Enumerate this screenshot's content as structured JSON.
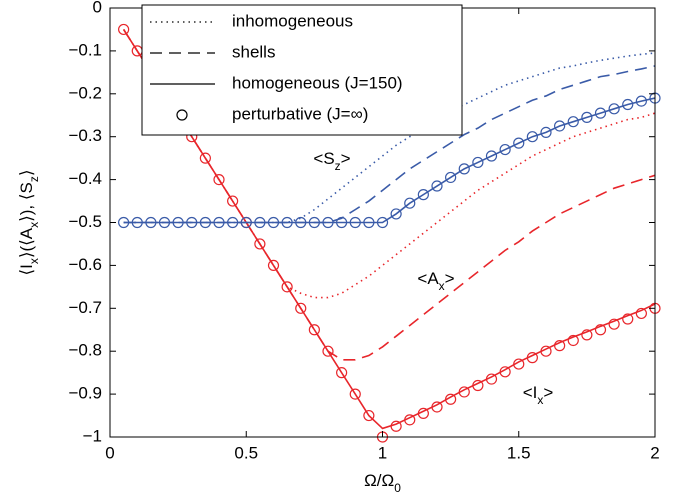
{
  "chart_data": {
    "type": "line",
    "xlabel": [
      "Ω/Ω",
      "0"
    ],
    "ylabel": [
      "⟨I",
      "x",
      "⟩(⟨A",
      "x",
      "⟩), ⟨S",
      "z",
      "⟩"
    ],
    "xlim": [
      0,
      2
    ],
    "ylim": [
      -1,
      0
    ],
    "xticks": [
      0,
      0.5,
      1,
      1.5,
      2
    ],
    "yticks": [
      {
        "value": -1,
        "label": "−1"
      },
      {
        "value": -0.9,
        "label": "−0.9"
      },
      {
        "value": -0.8,
        "label": "−0.8"
      },
      {
        "value": -0.7,
        "label": "−0.7"
      },
      {
        "value": -0.6,
        "label": "−0.6"
      },
      {
        "value": -0.5,
        "label": "−0.5"
      },
      {
        "value": -0.4,
        "label": "−0.4"
      },
      {
        "value": -0.3,
        "label": "−0.3"
      },
      {
        "value": -0.2,
        "label": "−0.2"
      },
      {
        "value": -0.1,
        "label": "−0.1"
      },
      0
    ],
    "x": [
      0.05,
      0.1,
      0.15,
      0.2,
      0.25,
      0.3,
      0.35,
      0.4,
      0.45,
      0.5,
      0.55,
      0.6,
      0.65,
      0.7,
      0.75,
      0.8,
      0.85,
      0.9,
      0.95,
      1.0,
      1.05,
      1.1,
      1.15,
      1.2,
      1.25,
      1.3,
      1.35,
      1.4,
      1.45,
      1.5,
      1.55,
      1.6,
      1.65,
      1.7,
      1.75,
      1.8,
      1.85,
      1.9,
      1.95,
      2.0
    ],
    "series": [
      {
        "style": "dotted",
        "color": "#e8262b",
        "values": [
          -0.05,
          -0.1,
          -0.15,
          -0.2,
          -0.25,
          -0.3,
          -0.35,
          -0.4,
          -0.45,
          -0.5,
          -0.55,
          -0.6,
          -0.65,
          -0.665,
          -0.675,
          -0.675,
          -0.665,
          -0.645,
          -0.625,
          -0.6,
          -0.575,
          -0.55,
          -0.525,
          -0.5,
          -0.475,
          -0.45,
          -0.425,
          -0.405,
          -0.385,
          -0.365,
          -0.345,
          -0.33,
          -0.315,
          -0.3,
          -0.29,
          -0.28,
          -0.27,
          -0.26,
          -0.255,
          -0.245
        ]
      },
      {
        "style": "dashed",
        "color": "#e8262b",
        "values": [
          -0.05,
          -0.1,
          -0.15,
          -0.2,
          -0.25,
          -0.3,
          -0.35,
          -0.4,
          -0.45,
          -0.5,
          -0.55,
          -0.6,
          -0.65,
          -0.7,
          -0.75,
          -0.8,
          -0.82,
          -0.82,
          -0.81,
          -0.79,
          -0.765,
          -0.74,
          -0.715,
          -0.69,
          -0.665,
          -0.64,
          -0.615,
          -0.59,
          -0.565,
          -0.545,
          -0.52,
          -0.5,
          -0.48,
          -0.465,
          -0.45,
          -0.435,
          -0.42,
          -0.41,
          -0.4,
          -0.39
        ]
      },
      {
        "style": "solid",
        "color": "#e8262b",
        "values": [
          -0.05,
          -0.1,
          -0.15,
          -0.2,
          -0.25,
          -0.3,
          -0.35,
          -0.4,
          -0.45,
          -0.5,
          -0.55,
          -0.6,
          -0.65,
          -0.7,
          -0.75,
          -0.8,
          -0.85,
          -0.9,
          -0.95,
          -0.98,
          -0.97,
          -0.955,
          -0.94,
          -0.925,
          -0.907,
          -0.89,
          -0.875,
          -0.86,
          -0.843,
          -0.825,
          -0.81,
          -0.795,
          -0.78,
          -0.767,
          -0.755,
          -0.742,
          -0.73,
          -0.717,
          -0.705,
          -0.69
        ]
      },
      {
        "style": "circles",
        "color": "#e8262b",
        "values": [
          -0.05,
          -0.1,
          -0.15,
          -0.2,
          -0.25,
          -0.3,
          -0.35,
          -0.4,
          -0.45,
          -0.5,
          -0.55,
          -0.6,
          -0.65,
          -0.7,
          -0.75,
          -0.8,
          -0.85,
          -0.9,
          -0.95,
          -1.0,
          -0.975,
          -0.96,
          -0.945,
          -0.93,
          -0.912,
          -0.895,
          -0.88,
          -0.865,
          -0.848,
          -0.83,
          -0.815,
          -0.8,
          -0.787,
          -0.775,
          -0.762,
          -0.75,
          -0.737,
          -0.725,
          -0.712,
          -0.7
        ]
      },
      {
        "style": "dotted",
        "color": "#3a5ba8",
        "values": [
          -0.5,
          -0.5,
          -0.5,
          -0.5,
          -0.5,
          -0.5,
          -0.5,
          -0.5,
          -0.5,
          -0.5,
          -0.5,
          -0.5,
          -0.5,
          -0.49,
          -0.47,
          -0.445,
          -0.42,
          -0.395,
          -0.37,
          -0.345,
          -0.32,
          -0.3,
          -0.28,
          -0.26,
          -0.24,
          -0.225,
          -0.21,
          -0.195,
          -0.18,
          -0.17,
          -0.16,
          -0.15,
          -0.14,
          -0.135,
          -0.128,
          -0.122,
          -0.117,
          -0.112,
          -0.108,
          -0.105
        ]
      },
      {
        "style": "dashed",
        "color": "#3a5ba8",
        "values": [
          -0.5,
          -0.5,
          -0.5,
          -0.5,
          -0.5,
          -0.5,
          -0.5,
          -0.5,
          -0.5,
          -0.5,
          -0.5,
          -0.5,
          -0.5,
          -0.5,
          -0.5,
          -0.5,
          -0.49,
          -0.47,
          -0.45,
          -0.425,
          -0.4,
          -0.375,
          -0.355,
          -0.335,
          -0.315,
          -0.295,
          -0.28,
          -0.26,
          -0.245,
          -0.23,
          -0.215,
          -0.205,
          -0.19,
          -0.18,
          -0.17,
          -0.16,
          -0.155,
          -0.148,
          -0.142,
          -0.135
        ]
      },
      {
        "style": "solid",
        "color": "#3a5ba8",
        "values": [
          -0.5,
          -0.5,
          -0.5,
          -0.5,
          -0.5,
          -0.5,
          -0.5,
          -0.5,
          -0.5,
          -0.5,
          -0.5,
          -0.5,
          -0.5,
          -0.5,
          -0.5,
          -0.5,
          -0.5,
          -0.5,
          -0.5,
          -0.5,
          -0.48,
          -0.455,
          -0.435,
          -0.415,
          -0.395,
          -0.375,
          -0.36,
          -0.345,
          -0.33,
          -0.315,
          -0.3,
          -0.29,
          -0.275,
          -0.265,
          -0.255,
          -0.245,
          -0.235,
          -0.225,
          -0.217,
          -0.21
        ]
      },
      {
        "style": "circles",
        "color": "#3a5ba8",
        "values": [
          -0.5,
          -0.5,
          -0.5,
          -0.5,
          -0.5,
          -0.5,
          -0.5,
          -0.5,
          -0.5,
          -0.5,
          -0.5,
          -0.5,
          -0.5,
          -0.5,
          -0.5,
          -0.5,
          -0.5,
          -0.5,
          -0.5,
          -0.5,
          -0.48,
          -0.455,
          -0.435,
          -0.415,
          -0.395,
          -0.375,
          -0.36,
          -0.345,
          -0.33,
          -0.315,
          -0.3,
          -0.29,
          -0.275,
          -0.265,
          -0.255,
          -0.245,
          -0.235,
          -0.225,
          -0.217,
          -0.21
        ]
      }
    ],
    "legend": [
      {
        "label": "inhomogeneous",
        "style": "dotted"
      },
      {
        "label": "shells",
        "style": "dashed"
      },
      {
        "label": "homogeneous (J=150)",
        "style": "solid"
      },
      {
        "label": "perturbative (J=∞)",
        "style": "circles"
      }
    ],
    "annotations": [
      [
        "<S",
        "z",
        ">"
      ],
      [
        "<A",
        "x",
        ">"
      ],
      [
        "<I",
        "x",
        ">"
      ]
    ]
  }
}
